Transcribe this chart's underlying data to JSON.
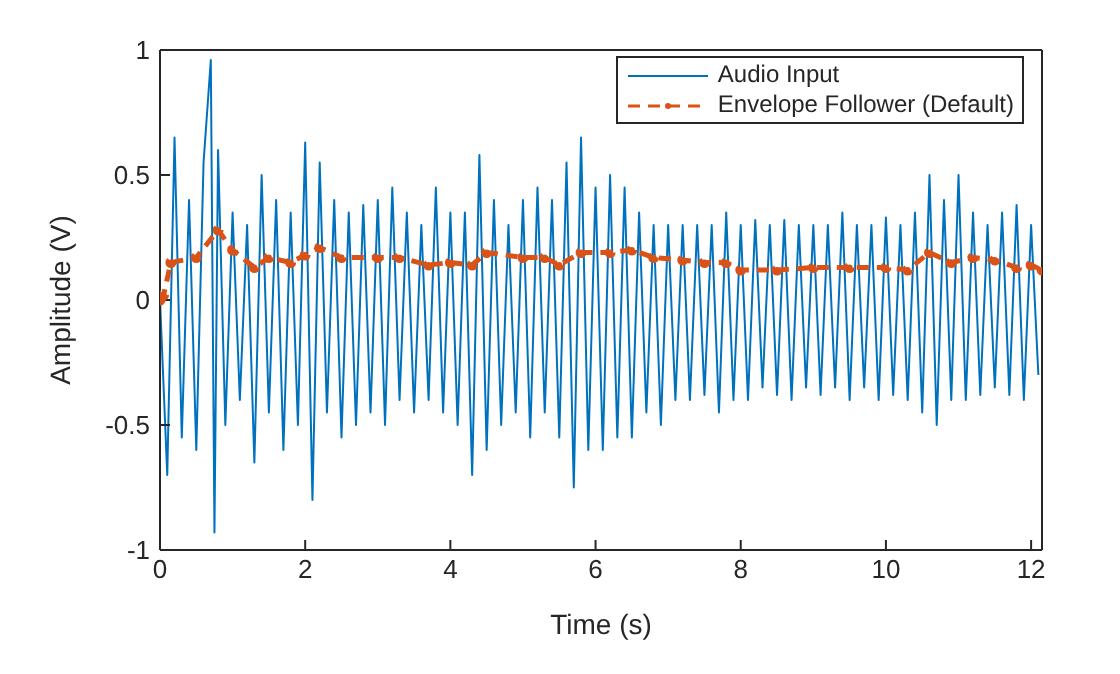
{
  "chart_data": {
    "type": "line",
    "xlabel": "Time (s)",
    "ylabel": "Amplitude (V)",
    "xlim": [
      0,
      12.15
    ],
    "ylim": [
      -1,
      1
    ],
    "xticks": [
      0,
      2,
      4,
      6,
      8,
      10,
      12
    ],
    "yticks": [
      -1,
      -0.5,
      0,
      0.5,
      1
    ],
    "grid": false,
    "legend": "top right",
    "series": [
      {
        "name": "Audio Input",
        "color": "#0072bd",
        "line_style": "solid",
        "marker": "none",
        "x": [
          0,
          0.1,
          0.2,
          0.3,
          0.4,
          0.5,
          0.6,
          0.7,
          0.75,
          0.8,
          0.9,
          1.0,
          1.1,
          1.2,
          1.3,
          1.4,
          1.5,
          1.6,
          1.7,
          1.8,
          1.9,
          2.0,
          2.1,
          2.2,
          2.3,
          2.4,
          2.5,
          2.6,
          2.7,
          2.8,
          2.9,
          3.0,
          3.1,
          3.2,
          3.3,
          3.4,
          3.5,
          3.6,
          3.7,
          3.8,
          3.9,
          4.0,
          4.1,
          4.2,
          4.3,
          4.4,
          4.5,
          4.6,
          4.7,
          4.8,
          4.9,
          5.0,
          5.1,
          5.2,
          5.3,
          5.4,
          5.5,
          5.6,
          5.7,
          5.8,
          5.9,
          6.0,
          6.1,
          6.2,
          6.3,
          6.4,
          6.5,
          6.6,
          6.7,
          6.8,
          6.9,
          7.0,
          7.1,
          7.2,
          7.3,
          7.4,
          7.5,
          7.6,
          7.7,
          7.8,
          7.9,
          8.0,
          8.1,
          8.2,
          8.3,
          8.4,
          8.5,
          8.6,
          8.7,
          8.8,
          8.9,
          9.0,
          9.1,
          9.2,
          9.3,
          9.4,
          9.5,
          9.6,
          9.7,
          9.8,
          9.9,
          10.0,
          10.1,
          10.2,
          10.3,
          10.4,
          10.5,
          10.6,
          10.7,
          10.8,
          10.9,
          11.0,
          11.1,
          11.2,
          11.3,
          11.4,
          11.5,
          11.6,
          11.7,
          11.8,
          11.9,
          12.0,
          12.1
        ],
        "values": [
          0,
          -0.7,
          0.65,
          -0.55,
          0.4,
          -0.6,
          0.55,
          0.96,
          -0.93,
          0.6,
          -0.5,
          0.35,
          -0.4,
          0.3,
          -0.65,
          0.5,
          -0.45,
          0.4,
          -0.6,
          0.35,
          -0.5,
          0.63,
          -0.8,
          0.55,
          -0.45,
          0.4,
          -0.55,
          0.35,
          -0.5,
          0.38,
          -0.45,
          0.4,
          -0.5,
          0.45,
          -0.4,
          0.35,
          -0.45,
          0.3,
          -0.4,
          0.45,
          -0.45,
          0.35,
          -0.5,
          0.35,
          -0.7,
          0.58,
          -0.6,
          0.4,
          -0.5,
          0.3,
          -0.45,
          0.4,
          -0.55,
          0.45,
          -0.45,
          0.4,
          -0.55,
          0.55,
          -0.75,
          0.65,
          -0.6,
          0.45,
          -0.6,
          0.5,
          -0.55,
          0.45,
          -0.55,
          0.35,
          -0.45,
          0.3,
          -0.5,
          0.3,
          -0.4,
          0.3,
          -0.4,
          0.3,
          -0.38,
          0.3,
          -0.45,
          0.35,
          -0.4,
          0.3,
          -0.4,
          0.32,
          -0.35,
          0.3,
          -0.38,
          0.32,
          -0.4,
          0.3,
          -0.35,
          0.3,
          -0.38,
          0.3,
          -0.35,
          0.35,
          -0.4,
          0.3,
          -0.35,
          0.3,
          -0.4,
          0.33,
          -0.38,
          0.3,
          -0.4,
          0.35,
          -0.45,
          0.5,
          -0.5,
          0.4,
          -0.4,
          0.5,
          -0.4,
          0.35,
          -0.38,
          0.3,
          -0.35,
          0.35,
          -0.38,
          0.38,
          -0.4,
          0.3,
          -0.3
        ]
      },
      {
        "name": "Envelope Follower (Default)",
        "color": "#d95319",
        "line_style": "dashed",
        "marker": "circle",
        "x": [
          0,
          0.05,
          0.15,
          0.5,
          0.8,
          1.0,
          1.3,
          1.5,
          1.8,
          2.0,
          2.2,
          2.5,
          3.0,
          3.3,
          3.7,
          4.0,
          4.3,
          4.5,
          5.0,
          5.3,
          5.5,
          5.8,
          6.2,
          6.5,
          6.8,
          7.2,
          7.5,
          7.8,
          8.0,
          8.5,
          9.0,
          9.5,
          10.0,
          10.3,
          10.6,
          10.9,
          11.2,
          11.5,
          11.8,
          12.0,
          12.15
        ],
        "values": [
          0,
          0.02,
          0.15,
          0.17,
          0.28,
          0.2,
          0.13,
          0.17,
          0.15,
          0.18,
          0.21,
          0.17,
          0.17,
          0.17,
          0.14,
          0.15,
          0.14,
          0.19,
          0.17,
          0.17,
          0.14,
          0.19,
          0.19,
          0.2,
          0.17,
          0.16,
          0.15,
          0.15,
          0.12,
          0.12,
          0.13,
          0.13,
          0.13,
          0.12,
          0.19,
          0.15,
          0.17,
          0.16,
          0.13,
          0.14,
          0.12
        ]
      }
    ]
  }
}
